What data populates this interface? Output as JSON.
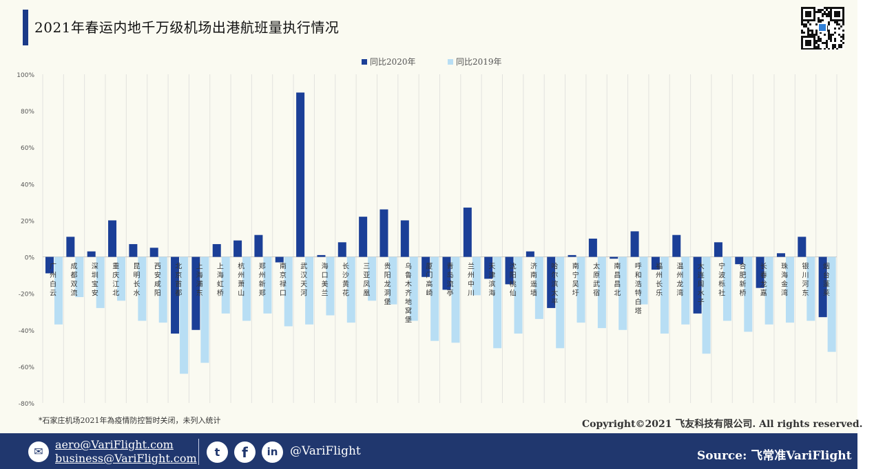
{
  "header": {
    "title": "2021年春运内地千万级机场出港航班量执行情况"
  },
  "footnote": "*石家庄机场2021年為疫情防控暂时关闭，未列入统计",
  "copyright": "Copyright©2021 飞友科技有限公司. All rights reserved.",
  "footer": {
    "email1": "aero@VariFlight.com",
    "email2": "business@VariFlight.com",
    "handle": "@VariFlight",
    "source": "Source: 飞常准VariFlight",
    "icons": [
      "mail-icon",
      "twitter-icon",
      "facebook-icon",
      "linkedin-icon",
      "qr-code-icon"
    ]
  },
  "colors": {
    "series_2020": "#1b3f97",
    "series_2019": "#b8def4",
    "title_bar": "#1b3a88",
    "footer_bg": "#20376e",
    "plot_bg": "#fafaf1"
  },
  "chart_data": {
    "type": "bar",
    "title": "",
    "xlabel": "",
    "ylabel": "",
    "ylim": [
      -80,
      100
    ],
    "yticks": [
      "100%",
      "80%",
      "60%",
      "40%",
      "20%",
      "0%",
      "-20%",
      "-40%",
      "-60%",
      "-80%"
    ],
    "legend_position": "top-center",
    "grid": "vertical",
    "categories": [
      "广州白云",
      "成都双流",
      "深圳宝安",
      "重庆江北",
      "昆明长水",
      "西安咸阳",
      "北京首都",
      "上海浦东",
      "上海虹桥",
      "杭州萧山",
      "郑州新郑",
      "南京禄口",
      "武汉天河",
      "海口美兰",
      "长沙黄花",
      "三亚凤凰",
      "贵阳龙洞堡",
      "乌鲁木齐地窝堡",
      "厦门高崎",
      "青岛流亭",
      "兰州中川",
      "天津滨海",
      "沈阳桃仙",
      "济南遥墙",
      "哈尔滨太平",
      "南宁吴圩",
      "太原武宿",
      "南昌昌北",
      "呼和浩特白塔",
      "福州长乐",
      "温州龙湾",
      "大连周水子",
      "宁波栎社",
      "合肥新桥",
      "长春龙嘉",
      "珠海金湾",
      "银川河东",
      "烟台蓬莱"
    ],
    "series": [
      {
        "name": "同比2020年",
        "values": [
          -9,
          11,
          3,
          20,
          7,
          5,
          -42,
          -40,
          7,
          9,
          12,
          -3,
          90,
          1,
          8,
          22,
          26,
          20,
          -11,
          -18,
          27,
          -12,
          -15,
          3,
          -28,
          1,
          10,
          -1,
          14,
          -7,
          12,
          -31,
          8,
          -4,
          -17,
          2,
          11,
          -33
        ]
      },
      {
        "name": "同比2019年",
        "values": [
          -37,
          -22,
          -28,
          -24,
          -35,
          -36,
          -64,
          -58,
          -31,
          -35,
          -31,
          -38,
          -37,
          -32,
          -36,
          -24,
          -26,
          -35,
          -46,
          -47,
          -21,
          -50,
          -42,
          -34,
          -50,
          -36,
          -39,
          -40,
          -26,
          -42,
          -37,
          -53,
          -35,
          -41,
          -37,
          -36,
          -35,
          -52
        ]
      }
    ]
  }
}
